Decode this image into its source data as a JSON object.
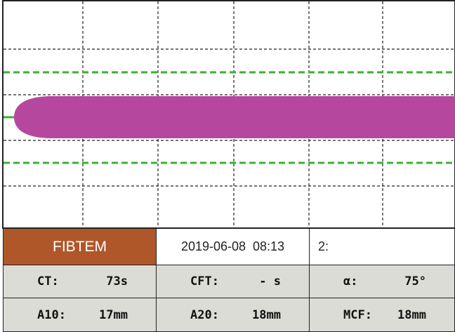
{
  "header": {
    "test": "FIBTEM",
    "datetime": "2019-06-08  08:13",
    "channel": "2:"
  },
  "parameters": [
    [
      {
        "label": "CT:",
        "value": "73s"
      },
      {
        "label": "CFT:",
        "value": "- s"
      },
      {
        "label": "α:",
        "value": "75°"
      }
    ],
    [
      {
        "label": "A10:",
        "value": "17mm"
      },
      {
        "label": "A20:",
        "value": "18mm"
      },
      {
        "label": "MCF:",
        "value": "18mm"
      }
    ]
  ]
}
